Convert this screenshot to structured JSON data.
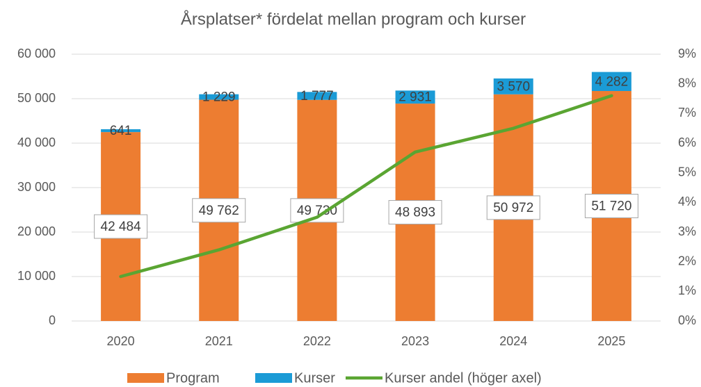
{
  "chart_data": {
    "type": "bar",
    "title": "Årsplatser* fördelat mellan program och kurser",
    "categories": [
      "2020",
      "2021",
      "2022",
      "2023",
      "2024",
      "2025"
    ],
    "stacked": true,
    "series": [
      {
        "name": "Program",
        "color": "#ed7d31",
        "values": [
          42484,
          49762,
          49730,
          48893,
          50972,
          51720
        ],
        "value_labels": [
          "42 484",
          "49 762",
          "49 730",
          "48 893",
          "50 972",
          "51 720"
        ]
      },
      {
        "name": "Kurser",
        "color": "#1b9bd6",
        "values": [
          641,
          1229,
          1777,
          2931,
          3570,
          4282
        ],
        "value_labels": [
          "641",
          "1 229",
          "1 777",
          "2 931",
          "3 570",
          "4 282"
        ]
      },
      {
        "name": "Kurser andel (höger axel)",
        "color": "#5aa532",
        "type": "line",
        "axis": "y2",
        "values": [
          1.5,
          2.4,
          3.5,
          5.7,
          6.5,
          7.6
        ]
      }
    ],
    "ylim": [
      0,
      60000
    ],
    "yticks": [
      {
        "value": 0,
        "label": "0"
      },
      {
        "value": 10000,
        "label": "10 000"
      },
      {
        "value": 20000,
        "label": "20 000"
      },
      {
        "value": 30000,
        "label": "30 000"
      },
      {
        "value": 40000,
        "label": "40 000"
      },
      {
        "value": 50000,
        "label": "50 000"
      },
      {
        "value": 60000,
        "label": "60 000"
      }
    ],
    "y2lim": [
      0,
      9
    ],
    "y2ticks": [
      {
        "value": 0,
        "label": "0%"
      },
      {
        "value": 1,
        "label": "1%"
      },
      {
        "value": 2,
        "label": "2%"
      },
      {
        "value": 3,
        "label": "3%"
      },
      {
        "value": 4,
        "label": "4%"
      },
      {
        "value": 5,
        "label": "5%"
      },
      {
        "value": 6,
        "label": "6%"
      },
      {
        "value": 7,
        "label": "7%"
      },
      {
        "value": 8,
        "label": "8%"
      },
      {
        "value": 9,
        "label": "9%"
      }
    ],
    "grid": true,
    "legend": "bottom"
  }
}
